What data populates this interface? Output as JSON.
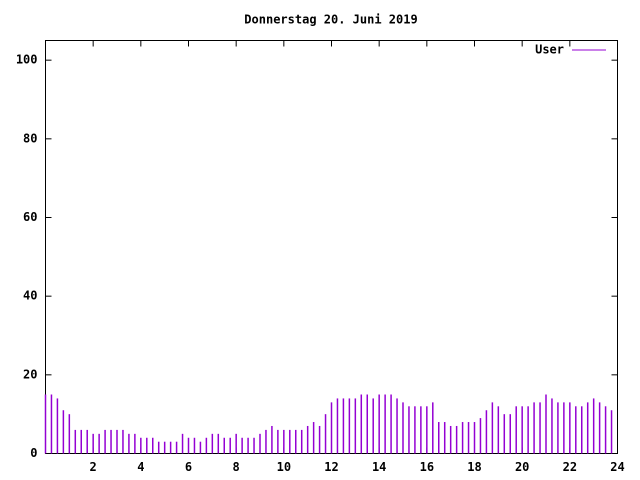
{
  "chart_data": {
    "type": "impulse",
    "title": "Donnerstag 20. Juni 2019",
    "x": [
      0,
      0.25,
      0.5,
      0.75,
      1,
      1.25,
      1.5,
      1.75,
      2,
      2.25,
      2.5,
      2.75,
      3,
      3.25,
      3.5,
      3.75,
      4,
      4.25,
      4.5,
      4.75,
      5,
      5.25,
      5.5,
      5.75,
      6,
      6.25,
      6.5,
      6.75,
      7,
      7.25,
      7.5,
      7.75,
      8,
      8.25,
      8.5,
      8.75,
      9,
      9.25,
      9.5,
      9.75,
      10,
      10.25,
      10.5,
      10.75,
      11,
      11.25,
      11.5,
      11.75,
      12,
      12.25,
      12.5,
      12.75,
      13,
      13.25,
      13.5,
      13.75,
      14,
      14.25,
      14.5,
      14.75,
      15,
      15.25,
      15.5,
      15.75,
      16,
      16.25,
      16.5,
      16.75,
      17,
      17.25,
      17.5,
      17.75,
      18,
      18.25,
      18.5,
      18.75,
      19,
      19.25,
      19.5,
      19.75,
      20,
      20.25,
      20.5,
      20.75,
      21,
      21.25,
      21.5,
      21.75,
      22,
      22.25,
      22.5,
      22.75,
      23,
      23.25,
      23.5,
      23.75
    ],
    "series": [
      {
        "name": "User",
        "color": "#9400d3",
        "values": [
          15,
          15,
          14,
          11,
          10,
          6,
          6,
          6,
          5,
          5,
          6,
          6,
          6,
          6,
          5,
          5,
          4,
          4,
          4,
          3,
          3,
          3,
          3,
          5,
          4,
          4,
          3,
          4,
          5,
          5,
          4,
          4,
          5,
          4,
          4,
          4,
          5,
          6,
          7,
          6,
          6,
          6,
          6,
          6,
          7,
          8,
          7,
          10,
          13,
          14,
          14,
          14,
          14,
          15,
          15,
          14,
          15,
          15,
          15,
          14,
          13,
          12,
          12,
          12,
          12,
          13,
          8,
          8,
          7,
          7,
          8,
          8,
          8,
          9,
          11,
          13,
          12,
          10,
          10,
          12,
          12,
          12,
          13,
          13,
          15,
          14,
          13,
          13,
          13,
          12,
          12,
          13,
          14,
          13,
          12,
          11
        ]
      }
    ],
    "xlim": [
      0,
      24
    ],
    "xticks": [
      2,
      4,
      6,
      8,
      10,
      12,
      14,
      16,
      18,
      20,
      22,
      24
    ],
    "ylim": [
      0,
      105
    ],
    "yticks": [
      0,
      20,
      40,
      60,
      80,
      100
    ]
  }
}
